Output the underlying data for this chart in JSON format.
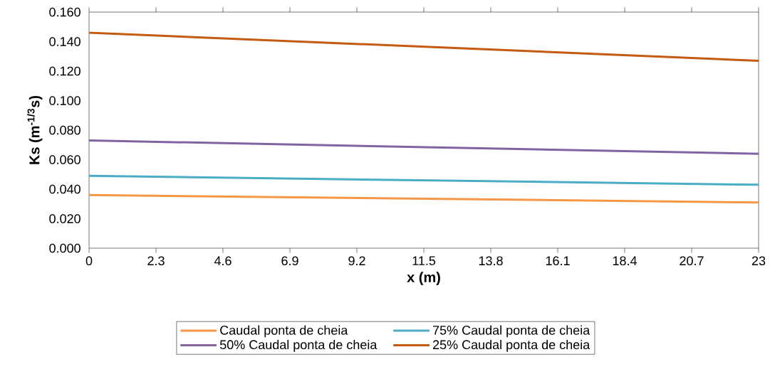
{
  "chart_data": {
    "type": "line",
    "xlabel": "x (m)",
    "ylabel": "Ks (m$^{-1/3}$s)",
    "xlim": [
      0,
      23
    ],
    "xticks": [
      0,
      2.3,
      4.6,
      6.9,
      9.2,
      11.5,
      13.8,
      16.1,
      18.4,
      20.7,
      23
    ],
    "ylim": [
      0,
      0.16
    ],
    "yticks": [
      {
        "value": 0,
        "label": "0.000"
      },
      {
        "value": 0.02,
        "label": "0.020"
      },
      {
        "value": 0.04,
        "label": "0.040"
      },
      {
        "value": 0.06,
        "label": "0.060"
      },
      {
        "value": 0.08,
        "label": "0.080"
      },
      {
        "value": 0.1,
        "label": "0.100"
      },
      {
        "value": 0.12,
        "label": "0.120"
      },
      {
        "value": 0.14,
        "label": "0.140"
      },
      {
        "value": 0.16,
        "label": "0.160"
      }
    ],
    "x": [
      0,
      23
    ],
    "grid": false,
    "legend": "bottom",
    "marker": "none",
    "line_style": "solid",
    "series": [
      {
        "name": "Caudal ponta de cheia",
        "color": "#f79646",
        "values": [
          0.036,
          0.031
        ]
      },
      {
        "name": "75% Caudal ponta de cheia",
        "color": "#4bacc6",
        "values": [
          0.049,
          0.043
        ]
      },
      {
        "name": "50% Caudal ponta de cheia",
        "color": "#8064a2",
        "values": [
          0.073,
          0.064
        ]
      },
      {
        "name": "25% Caudal ponta de cheia",
        "color": "#c55a11",
        "values": [
          0.146,
          0.127
        ]
      }
    ]
  }
}
